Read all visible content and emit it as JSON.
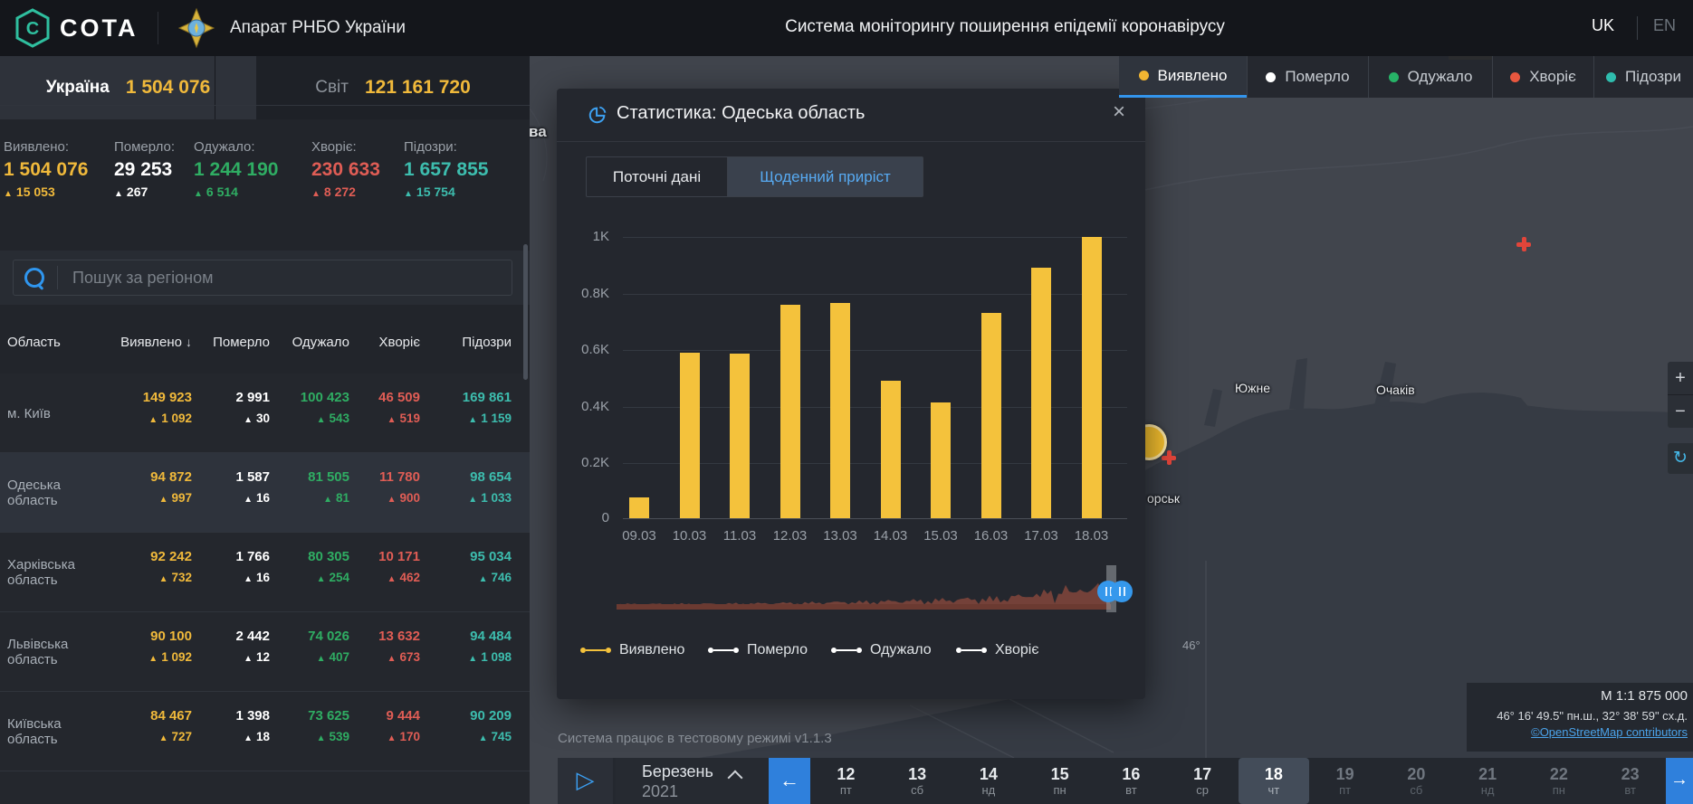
{
  "top_bar": {
    "logo_text": "COTA",
    "org_name": "Апарат РНБО України",
    "title": "Система моніторингу поширення епідемії коронавірусу",
    "lang_active": "UK",
    "lang_inactive": "EN"
  },
  "map_legend": {
    "items": [
      {
        "label": "Виявлено",
        "color": "#f2b632",
        "active": true
      },
      {
        "label": "Померло",
        "color": "#ffffff",
        "active": false
      },
      {
        "label": "Одужало",
        "color": "#27b367",
        "active": false
      },
      {
        "label": "Хворіє",
        "color": "#e8573f",
        "active": false
      },
      {
        "label": "Підозри",
        "color": "#2fbdae",
        "active": false
      }
    ]
  },
  "summary_tabs": {
    "ukraine": {
      "label": "Україна",
      "value": "1 504 076"
    },
    "world": {
      "label": "Світ",
      "value": "121 161 720"
    }
  },
  "stats": [
    {
      "label": "Виявлено:",
      "value": "1 504 076",
      "delta": "15 053",
      "color": "#f0b93b"
    },
    {
      "label": "Померло:",
      "value": "29 253",
      "delta": "267",
      "color": "#ffffff"
    },
    {
      "label": "Одужало:",
      "value": "1 244 190",
      "delta": "6 514",
      "color": "#2fad63"
    },
    {
      "label": "Хворіє:",
      "value": "230 633",
      "delta": "8 272",
      "color": "#e05d55"
    },
    {
      "label": "Підозри:",
      "value": "1 657 855",
      "delta": "15 754",
      "color": "#3dbdae"
    }
  ],
  "search": {
    "placeholder": "Пошук за регіоном"
  },
  "table": {
    "headers": [
      "Область",
      "Виявлено",
      "Померло",
      "Одужало",
      "Хворіє",
      "Підозри"
    ],
    "sorted_by": "Виявлено",
    "column_colors": [
      "#f0b93b",
      "#ffffff",
      "#2fad63",
      "#e05d55",
      "#3dbdae"
    ],
    "rows": [
      {
        "region": "м. Київ",
        "selected": false,
        "cells": [
          {
            "v": "149 923",
            "d": "1 092"
          },
          {
            "v": "2 991",
            "d": "30"
          },
          {
            "v": "100 423",
            "d": "543"
          },
          {
            "v": "46 509",
            "d": "519"
          },
          {
            "v": "169 861",
            "d": "1 159"
          }
        ]
      },
      {
        "region": "Одеська область",
        "selected": true,
        "cells": [
          {
            "v": "94 872",
            "d": "997"
          },
          {
            "v": "1 587",
            "d": "16"
          },
          {
            "v": "81 505",
            "d": "81"
          },
          {
            "v": "11 780",
            "d": "900"
          },
          {
            "v": "98 654",
            "d": "1 033"
          }
        ]
      },
      {
        "region": "Харківська область",
        "selected": false,
        "cells": [
          {
            "v": "92 242",
            "d": "732"
          },
          {
            "v": "1 766",
            "d": "16"
          },
          {
            "v": "80 305",
            "d": "254"
          },
          {
            "v": "10 171",
            "d": "462"
          },
          {
            "v": "95 034",
            "d": "746"
          }
        ]
      },
      {
        "region": "Львівська область",
        "selected": false,
        "cells": [
          {
            "v": "90 100",
            "d": "1 092"
          },
          {
            "v": "2 442",
            "d": "12"
          },
          {
            "v": "74 026",
            "d": "407"
          },
          {
            "v": "13 632",
            "d": "673"
          },
          {
            "v": "94 484",
            "d": "1 098"
          }
        ]
      },
      {
        "region": "Київська область",
        "selected": false,
        "cells": [
          {
            "v": "84 467",
            "d": "727"
          },
          {
            "v": "1 398",
            "d": "18"
          },
          {
            "v": "73 625",
            "d": "539"
          },
          {
            "v": "9 444",
            "d": "170"
          },
          {
            "v": "90 209",
            "d": "745"
          }
        ]
      }
    ]
  },
  "modal": {
    "title": "Статистика: Одеська область",
    "close_glyph": "×",
    "tabs": [
      {
        "label": "Поточні дані",
        "active": false
      },
      {
        "label": "Щоденний приріст",
        "active": true
      }
    ],
    "legend": [
      {
        "label": "Виявлено",
        "color": "#f4c23c"
      },
      {
        "label": "Померло",
        "color": "#ffffff"
      },
      {
        "label": "Одужало",
        "color": "#ffffff"
      },
      {
        "label": "Хворіє",
        "color": "#ffffff"
      }
    ]
  },
  "chart_data": {
    "type": "bar",
    "title": "Щоденний приріст — Одеська область",
    "series_name": "Виявлено",
    "categories": [
      "09.03",
      "10.03",
      "11.03",
      "12.03",
      "13.03",
      "14.03",
      "15.03",
      "16.03",
      "17.03",
      "18.03"
    ],
    "values": [
      75,
      590,
      585,
      760,
      765,
      490,
      410,
      730,
      890,
      1000
    ],
    "bar_color": "#f4c23c",
    "ylabel_ticks": [
      "1K",
      "0.8K",
      "0.6K",
      "0.4K",
      "0.2K",
      "0"
    ],
    "ylim": [
      0,
      1000
    ],
    "grid": true,
    "legend_position": "bottom"
  },
  "footer_note": "Система працює в тестовому режимі v1.1.3",
  "timeline": {
    "month": "Березень",
    "year": "2021",
    "days": [
      {
        "num": "12",
        "dow": "пт",
        "state": "normal"
      },
      {
        "num": "13",
        "dow": "сб",
        "state": "normal"
      },
      {
        "num": "14",
        "dow": "нд",
        "state": "normal"
      },
      {
        "num": "15",
        "dow": "пн",
        "state": "normal"
      },
      {
        "num": "16",
        "dow": "вт",
        "state": "normal"
      },
      {
        "num": "17",
        "dow": "ср",
        "state": "normal"
      },
      {
        "num": "18",
        "dow": "чт",
        "state": "active"
      },
      {
        "num": "19",
        "dow": "пт",
        "state": "dim"
      },
      {
        "num": "20",
        "dow": "сб",
        "state": "dim"
      },
      {
        "num": "21",
        "dow": "нд",
        "state": "dim"
      },
      {
        "num": "22",
        "dow": "пн",
        "state": "dim"
      },
      {
        "num": "23",
        "dow": "вт",
        "state": "dim"
      }
    ]
  },
  "map": {
    "labels": [
      {
        "text": "ва"
      },
      {
        "text": "Южне"
      },
      {
        "text": "Очаків"
      },
      {
        "text": "орськ"
      }
    ],
    "lat_label": "46°",
    "scale_text": "М 1:1 875 000",
    "coords_text": "46° 16' 49.5\" пн.ш., 32° 38' 59\" сх.д.",
    "attribution": "©OpenStreetMap contributors",
    "zoom_in": "+",
    "zoom_out": "−",
    "refresh": "↻"
  }
}
